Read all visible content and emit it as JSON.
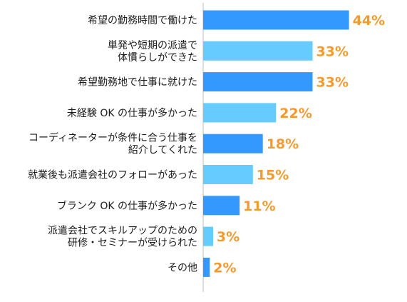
{
  "chart_data": {
    "type": "bar",
    "orientation": "horizontal",
    "title": "",
    "xlabel": "",
    "ylabel": "",
    "xlim": [
      0,
      44
    ],
    "grid": false,
    "legend": "none",
    "unit": "%",
    "categories": [
      [
        "希望の勤務時間で働けた"
      ],
      [
        "単発や短期の派遣で",
        "体慣らしができた"
      ],
      [
        "希望勤務地で仕事に就けた"
      ],
      [
        "未経験 OK の仕事が多かった"
      ],
      [
        "コーディネーターが条件に合う仕事を",
        "紹介してくれた"
      ],
      [
        "就業後も派遣会社のフォローがあった"
      ],
      [
        "ブランク OK の仕事が多かった"
      ],
      [
        "派遣会社でスキルアップのための",
        "研修・セミナーが受けられた"
      ],
      [
        "その他"
      ]
    ],
    "values": [
      44,
      33,
      33,
      22,
      18,
      15,
      11,
      3,
      2
    ],
    "value_labels": [
      "44%",
      "33%",
      "33%",
      "22%",
      "18%",
      "15%",
      "11%",
      "3%",
      "2%"
    ],
    "bar_colors": [
      "#3399ff",
      "#66ccff",
      "#3399ff",
      "#66ccff",
      "#3399ff",
      "#66ccff",
      "#3399ff",
      "#66ccff",
      "#3399ff"
    ],
    "label_color": "#f59a2e",
    "axis_color": "#bfbfbf"
  }
}
